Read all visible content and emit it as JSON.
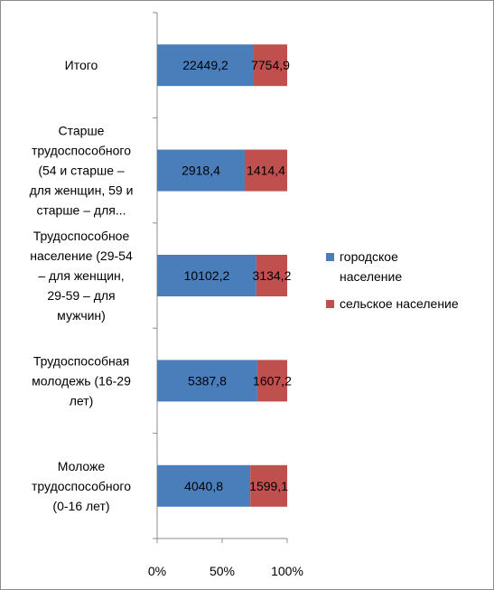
{
  "chart_data": {
    "type": "bar",
    "stacking": "percent",
    "orientation": "horizontal",
    "categories": [
      [
        "Итого"
      ],
      [
        "Старше",
        "трудоспособного",
        "(54 и старше –",
        "для женщин, 59 и",
        "старше – для..."
      ],
      [
        "Трудоспособное",
        "население (29-54",
        "– для женщин,",
        "29-59 – для",
        "мужчин)"
      ],
      [
        "Трудоспособная",
        "молодежь (16-29",
        "лет)"
      ],
      [
        "Моложе",
        "трудоспособного",
        "(0-16 лет)"
      ]
    ],
    "series": [
      {
        "name": "городское население",
        "legend_lines": [
          "городское",
          "население"
        ],
        "color": "#4a7ebb",
        "values": [
          22449.2,
          2918.4,
          10102.2,
          5387.8,
          4040.8
        ],
        "labels": [
          "22449,2",
          "2918,4",
          "10102,2",
          "5387,8",
          "4040,8"
        ]
      },
      {
        "name": "сельское население",
        "legend_lines": [
          "сельское население"
        ],
        "color": "#c0504d",
        "values": [
          7754.9,
          1414.4,
          3134.2,
          1607.2,
          1599.1
        ],
        "labels": [
          "7754,9",
          "1414,4",
          "3134,2",
          "1607,2",
          "1599,1"
        ]
      }
    ],
    "x_ticks": [
      "0%",
      "50%",
      "100%"
    ],
    "xlim": [
      0,
      100
    ],
    "grid": false,
    "legend_position": "right",
    "title": "",
    "xlabel": "",
    "ylabel": ""
  }
}
